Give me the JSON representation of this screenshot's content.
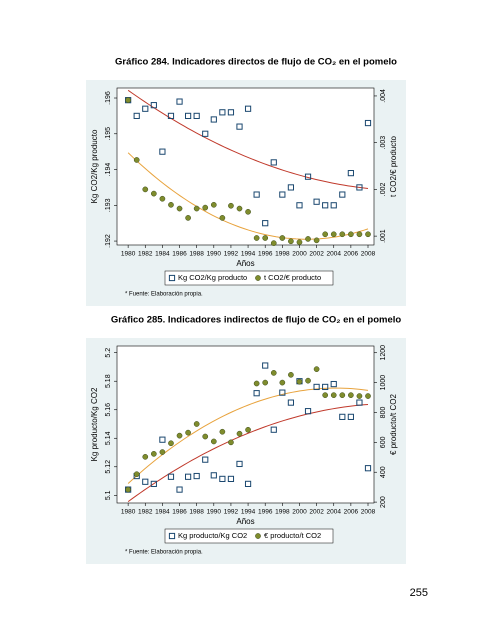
{
  "chart_data": [
    {
      "type": "scatter",
      "title": "Gráfico 284. Indicadores directos de flujo de CO₂ en el pomelo",
      "xlabel": "Años",
      "ylabel": "Kg CO2/Kg producto",
      "y2label": "t CO2/€ producto",
      "footnote": "* Fuente: Elaboración propia.",
      "x": [
        1980,
        1981,
        1982,
        1983,
        1984,
        1985,
        1986,
        1987,
        1988,
        1989,
        1990,
        1991,
        1992,
        1993,
        1994,
        1995,
        1996,
        1997,
        1998,
        1999,
        2000,
        2001,
        2002,
        2003,
        2004,
        2005,
        2006,
        2007,
        2008
      ],
      "xlim": [
        1978.7,
        2008.7
      ],
      "xticks": [
        1980,
        1982,
        1984,
        1986,
        1988,
        1990,
        1992,
        1994,
        1996,
        1998,
        2000,
        2002,
        2004,
        2006,
        2008
      ],
      "ylim": [
        0.19189,
        0.19628
      ],
      "yticks": [
        {
          "value": 0.192,
          "label": ".192"
        },
        {
          "value": 0.193,
          "label": ".193"
        },
        {
          "value": 0.194,
          "label": ".194"
        },
        {
          "value": 0.195,
          "label": ".195"
        },
        {
          "value": 0.196,
          "label": ".196"
        }
      ],
      "y2lim": [
        0.00081,
        0.00417
      ],
      "y2ticks": [
        {
          "value": 0.001,
          "label": ".001"
        },
        {
          "value": 0.002,
          "label": ".002"
        },
        {
          "value": 0.003,
          "label": ".003"
        },
        {
          "value": 0.004,
          "label": ".004"
        }
      ],
      "series": [
        {
          "name": "Kg CO2/Kg producto",
          "marker": "square",
          "color": "#1a476f",
          "fit_color": "#c0392b",
          "values": [
            0.19594,
            0.1955,
            0.1957,
            0.1958,
            0.1945,
            0.1955,
            0.1959,
            0.1955,
            0.1955,
            0.195,
            0.1954,
            0.1956,
            0.1956,
            0.1952,
            0.1957,
            0.1933,
            0.1925,
            0.1942,
            0.1933,
            0.1935,
            0.193,
            0.1938,
            0.1931,
            0.193,
            0.193,
            0.1933,
            0.1939,
            0.1935,
            0.1953
          ]
        },
        {
          "name": "t CO2/€ producto",
          "marker": "circle",
          "color": "#7f8c2d",
          "fit_color": "#e8a33d",
          "axis": "y2",
          "values": [
            0.00391,
            0.00263,
            0.002,
            0.00191,
            0.0018,
            0.00167,
            0.00159,
            0.00139,
            0.00159,
            0.00161,
            0.00167,
            0.00139,
            0.00165,
            0.00159,
            0.00152,
            0.00096,
            0.00096,
            0.00085,
            0.00096,
            0.00089,
            0.00087,
            0.00094,
            0.00091,
            0.00104,
            0.00104,
            0.00104,
            0.00104,
            0.00104,
            0.00104
          ]
        }
      ]
    },
    {
      "type": "scatter",
      "title": "Gráfico 285. Indicadores indirectos de flujo de CO₂ en el pomelo",
      "xlabel": "Años",
      "ylabel": "Kg producto/Kg CO2",
      "y2label": "€ producto/t CO2",
      "footnote": "* Fuente: Elaboración propia.",
      "x": [
        1980,
        1981,
        1982,
        1983,
        1984,
        1985,
        1986,
        1987,
        1988,
        1989,
        1990,
        1991,
        1992,
        1993,
        1994,
        1995,
        1996,
        1997,
        1998,
        1999,
        2000,
        2001,
        2002,
        2003,
        2004,
        2005,
        2006,
        2007,
        2008
      ],
      "xlim": [
        1978.7,
        2008.7
      ],
      "xticks": [
        1980,
        1982,
        1984,
        1986,
        1988,
        1990,
        1992,
        1994,
        1996,
        1998,
        2000,
        2002,
        2004,
        2006,
        2008
      ],
      "ylim": [
        5.0946,
        5.2047
      ],
      "yticks": [
        5.1,
        5.12,
        5.14,
        5.16,
        5.18,
        5.2
      ],
      "y2lim": [
        194,
        1245
      ],
      "y2ticks": [
        200,
        400,
        600,
        800,
        1000,
        1200
      ],
      "series": [
        {
          "name": "Kg producto/Kg CO2",
          "marker": "square",
          "color": "#1a476f",
          "fit_color": "#c0392b",
          "values": [
            5.104,
            5.1135,
            5.1095,
            5.108,
            5.139,
            5.113,
            5.104,
            5.113,
            5.1135,
            5.125,
            5.114,
            5.1115,
            5.1115,
            5.122,
            5.108,
            5.1716,
            5.191,
            5.146,
            5.172,
            5.165,
            5.18,
            5.159,
            5.176,
            5.176,
            5.178,
            5.155,
            5.155,
            5.165,
            5.119
          ]
        },
        {
          "name": "€ producto/t CO2",
          "marker": "circle",
          "color": "#7f8c2d",
          "fit_color": "#e8a33d",
          "axis": "y2",
          "values": [
            284,
            387,
            503,
            523,
            535,
            594,
            645,
            665,
            723,
            639,
            606,
            671,
            600,
            658,
            684,
            994,
            1000,
            1065,
            1000,
            1052,
            1006,
            1013,
            1090,
            916,
            916,
            916,
            916,
            910,
            910
          ]
        }
      ]
    }
  ],
  "page_number": "255"
}
